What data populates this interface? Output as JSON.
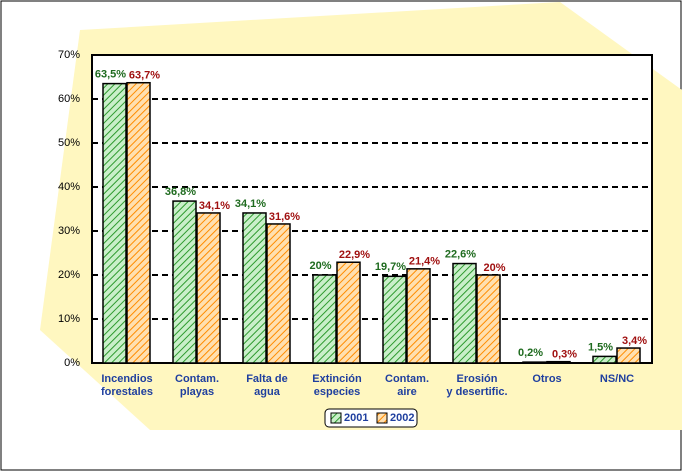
{
  "chart_data": {
    "type": "bar",
    "categories": [
      "Incendios\nforestales",
      "Contam.\nplayas",
      "Falta de\nagua",
      "Extinción\nespecies",
      "Contam.\naire",
      "Erosión\ny desertific.",
      "Otros",
      "NS/NC"
    ],
    "series": [
      {
        "name": "2001",
        "color": "#2e9a2e",
        "values": [
          63.5,
          36.8,
          34.1,
          20,
          19.7,
          22.6,
          0.2,
          1.5
        ],
        "value_labels": [
          "63,5%",
          "36,8%",
          "34,1%",
          "20%",
          "19,7%",
          "22,6%",
          "0,2%",
          "1,5%"
        ]
      },
      {
        "name": "2002",
        "color": "#ff8c00",
        "values": [
          63.7,
          34.1,
          31.6,
          22.9,
          21.4,
          20,
          0.3,
          3.4
        ],
        "value_labels": [
          "63,7%",
          "34,1%",
          "31,6%",
          "22,9%",
          "21,4%",
          "20%",
          "0,3%",
          "3,4%"
        ]
      }
    ],
    "ylim": [
      0,
      70
    ],
    "yticks": [
      {
        "value": 0,
        "label": "0%"
      },
      {
        "value": 10,
        "label": "10%"
      },
      {
        "value": 20,
        "label": "20%"
      },
      {
        "value": 30,
        "label": "30%"
      },
      {
        "value": 40,
        "label": "40%"
      },
      {
        "value": 50,
        "label": "50%"
      },
      {
        "value": 60,
        "label": "60%"
      },
      {
        "value": 70,
        "label": "70%"
      }
    ],
    "grid": true
  }
}
